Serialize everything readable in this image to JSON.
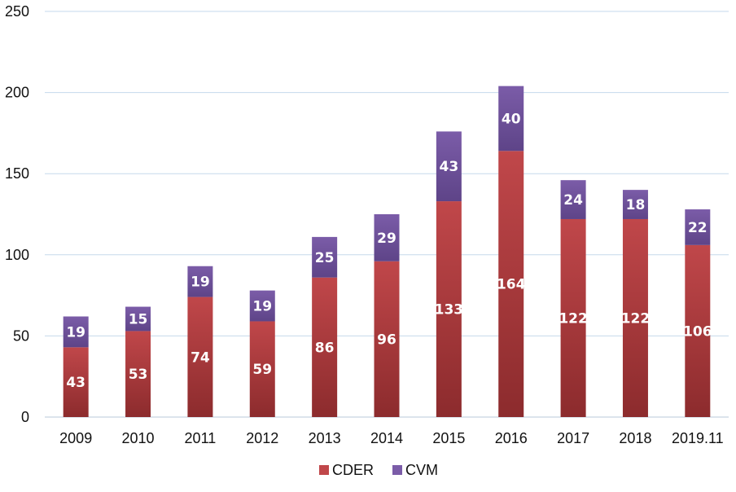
{
  "chart_data": {
    "type": "bar",
    "stacked": true,
    "categories": [
      "2009",
      "2010",
      "2011",
      "2012",
      "2013",
      "2014",
      "2015",
      "2016",
      "2017",
      "2018",
      "2019.11"
    ],
    "series": [
      {
        "name": "CDER",
        "values": [
          43,
          53,
          74,
          59,
          86,
          96,
          133,
          164,
          122,
          122,
          106
        ],
        "color": "#c0474a",
        "color_dark": "#8c2b2d"
      },
      {
        "name": "CVM",
        "values": [
          19,
          15,
          19,
          19,
          25,
          29,
          43,
          40,
          24,
          18,
          22
        ],
        "color": "#7b5ca8",
        "color_dark": "#5e4488"
      }
    ],
    "ylim": [
      0,
      250
    ],
    "yticks": [
      0,
      50,
      100,
      150,
      200,
      250
    ],
    "grid": true,
    "gridline_color": "#c5d9ec",
    "legend_position": "bottom",
    "title": "",
    "xlabel": "",
    "ylabel": ""
  }
}
